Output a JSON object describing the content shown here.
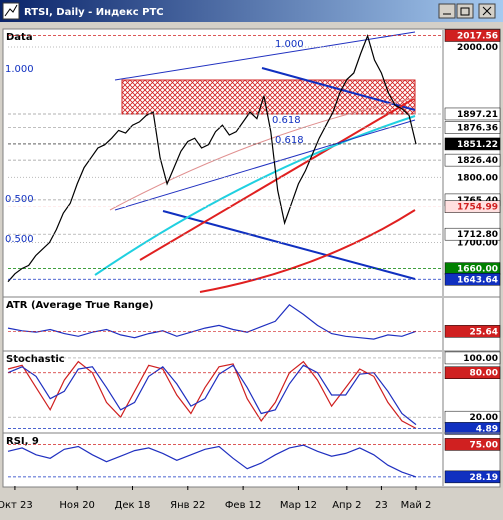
{
  "window": {
    "title": "RTSI, Daily - Индекс РТС"
  },
  "x_axis": {
    "ticks": [
      {
        "value": 1,
        "label": "Окт 23"
      },
      {
        "value": 10,
        "label": "Ноя 20"
      },
      {
        "value": 18,
        "label": "Дек 18"
      },
      {
        "value": 26,
        "label": "Янв 22"
      },
      {
        "value": 34,
        "label": "Фев 12"
      },
      {
        "value": 42,
        "label": "Мар 12"
      },
      {
        "value": 49,
        "label": "Апр 2"
      },
      {
        "value": 54,
        "label": "23"
      },
      {
        "value": 59,
        "label": "Май 2"
      }
    ]
  },
  "chart_data": [
    {
      "type": "line",
      "title": "Data",
      "color": "#000000",
      "ylim": [
        1618,
        2026
      ],
      "yticks": [
        {
          "value": 2000,
          "label": "2000.00"
        },
        {
          "value": 1800,
          "label": "1800.00"
        },
        {
          "value": 1700,
          "label": "1700.00"
        }
      ],
      "values": [
        1640,
        1652,
        1660,
        1665,
        1680,
        1690,
        1700,
        1720,
        1745,
        1760,
        1790,
        1815,
        1830,
        1845,
        1850,
        1860,
        1872,
        1868,
        1880,
        1885,
        1895,
        1900,
        1830,
        1790,
        1815,
        1840,
        1855,
        1860,
        1845,
        1850,
        1870,
        1880,
        1865,
        1870,
        1885,
        1900,
        1890,
        1925,
        1870,
        1780,
        1730,
        1760,
        1790,
        1810,
        1835,
        1860,
        1880,
        1900,
        1930,
        1950,
        1960,
        1990,
        2017,
        1980,
        1960,
        1930,
        1910,
        1905,
        1895,
        1851
      ],
      "levels": [
        {
          "value": 2017.56,
          "color": "#d02020"
        },
        {
          "value": 1897.21,
          "color": "#ffffff"
        },
        {
          "value": 1876.36,
          "color": "#ffffff"
        },
        {
          "value": 1851.22,
          "color": "#000000"
        },
        {
          "value": 1826.4,
          "label": "1826.40",
          "color": "#ffffff"
        },
        {
          "value": 1765.4,
          "label": "1765.40",
          "color": "#ffffff"
        },
        {
          "value": 1754.99,
          "color": "#ffe0e0"
        },
        {
          "value": 1712.8,
          "label": "1712.80",
          "color": "#ffffff"
        },
        {
          "value": 1660,
          "label": "1660.00",
          "color": "#008000"
        },
        {
          "value": 1643.64,
          "color": "#1030c0"
        }
      ],
      "annotations": [
        "1.000",
        "0.618",
        "0.500",
        "1.000",
        "0.618",
        "0.500"
      ]
    },
    {
      "type": "line",
      "title": "ATR (Average True Range)",
      "color": "#2030c0",
      "ylim": [
        12,
        50
      ],
      "values": [
        28,
        26,
        25,
        27,
        24,
        22,
        25,
        27,
        23,
        21,
        24,
        26,
        22,
        25,
        28,
        30,
        27,
        25,
        29,
        33,
        45,
        38,
        30,
        24,
        22,
        21,
        20,
        23,
        22,
        25.64
      ],
      "levels": [
        {
          "value": 25.64,
          "color": "#d02020"
        }
      ]
    },
    {
      "type": "line",
      "title": "Stochastic",
      "ylim": [
        0,
        108
      ],
      "series": [
        {
          "color": "#d02020",
          "values": [
            85,
            90,
            60,
            30,
            70,
            95,
            80,
            40,
            20,
            55,
            90,
            85,
            50,
            25,
            60,
            88,
            92,
            45,
            15,
            40,
            80,
            95,
            70,
            35,
            60,
            85,
            75,
            40,
            15,
            4.89
          ]
        },
        {
          "color": "#2030c0",
          "values": [
            80,
            88,
            75,
            45,
            55,
            85,
            88,
            60,
            30,
            40,
            75,
            88,
            65,
            35,
            45,
            78,
            90,
            60,
            25,
            30,
            65,
            90,
            80,
            50,
            50,
            78,
            80,
            55,
            25,
            10
          ]
        }
      ],
      "levels": [
        {
          "value": 100,
          "label": "100.00",
          "color": "#ffffff"
        },
        {
          "value": 80,
          "label": "80.00",
          "color": "#d02020"
        },
        {
          "value": 20,
          "label": "20.00",
          "color": "#ffffff"
        },
        {
          "value": 4.89,
          "color": "#1030c0"
        }
      ]
    },
    {
      "type": "line",
      "title": "RSI, 9",
      "color": "#2030c0",
      "ylim": [
        15,
        90
      ],
      "values": [
        65,
        70,
        60,
        55,
        68,
        72,
        60,
        50,
        58,
        66,
        70,
        62,
        52,
        60,
        68,
        72,
        55,
        40,
        48,
        60,
        70,
        74,
        65,
        58,
        62,
        70,
        60,
        45,
        35,
        28.19
      ],
      "levels": [
        {
          "value": 75,
          "label": "75.00",
          "color": "#d02020"
        },
        {
          "value": 28.19,
          "color": "#1030c0"
        }
      ]
    }
  ]
}
